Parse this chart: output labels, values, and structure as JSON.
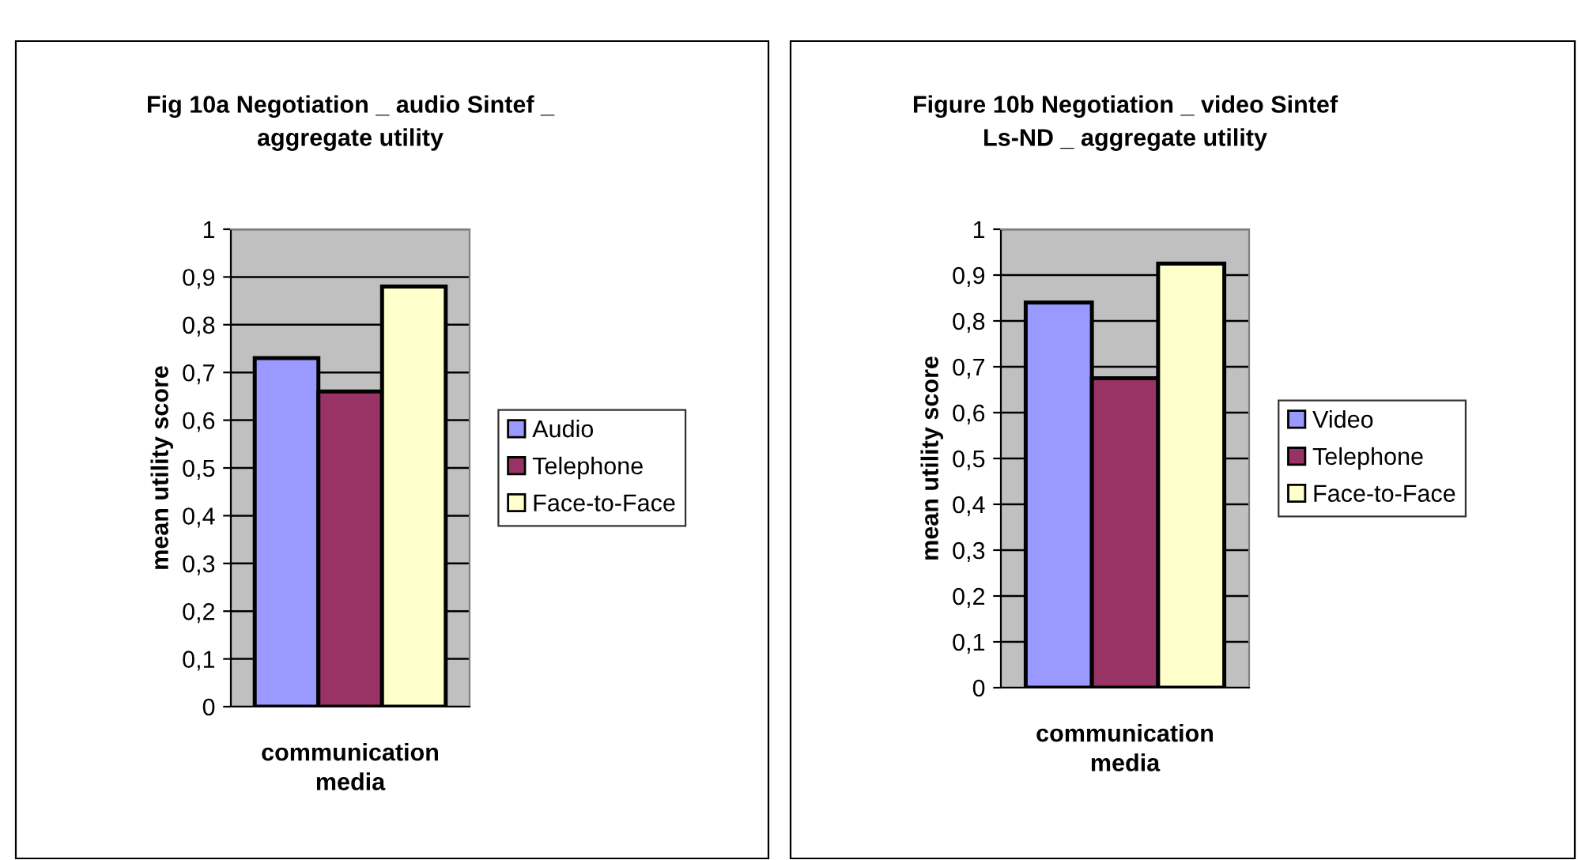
{
  "chart_data": [
    {
      "type": "bar",
      "title": "Fig 10a Negotiation _ audio Sintef _\naggregate utility",
      "xlabel": "communication\nmedia",
      "ylabel": "mean utility score",
      "categories": [
        null
      ],
      "series": [
        {
          "name": "Audio",
          "color": "#9999ff",
          "values": [
            0.73
          ]
        },
        {
          "name": "Telephone",
          "color": "#993366",
          "values": [
            0.66
          ]
        },
        {
          "name": "Face-to-Face",
          "color": "#ffffcc",
          "values": [
            0.88
          ]
        }
      ],
      "ylim": [
        0,
        1
      ],
      "yticks": [
        0,
        {
          "value": 0.1,
          "label": "0,1"
        },
        {
          "value": 0.2,
          "label": "0,2"
        },
        {
          "value": 0.3,
          "label": "0,3"
        },
        {
          "value": 0.4,
          "label": "0,4"
        },
        {
          "value": 0.5,
          "label": "0,5"
        },
        {
          "value": 0.6,
          "label": "0,6"
        },
        {
          "value": 0.7,
          "label": "0,7"
        },
        {
          "value": 0.8,
          "label": "0,8"
        },
        {
          "value": 0.9,
          "label": "0,9"
        },
        1
      ],
      "grid": "y",
      "legend": "right"
    },
    {
      "type": "bar",
      "title": "Figure 10b Negotiation _ video Sintef\nLs-ND _ aggregate utility",
      "xlabel": "communication\nmedia",
      "ylabel": "mean utility score",
      "categories": [
        null
      ],
      "series": [
        {
          "name": "Video",
          "color": "#9999ff",
          "values": [
            0.84
          ]
        },
        {
          "name": "Telephone",
          "color": "#993366",
          "values": [
            0.675
          ]
        },
        {
          "name": "Face-to-Face",
          "color": "#ffffcc",
          "values": [
            0.925
          ]
        }
      ],
      "ylim": [
        0,
        1
      ],
      "yticks": [
        0,
        {
          "value": 0.1,
          "label": "0,1"
        },
        {
          "value": 0.2,
          "label": "0,2"
        },
        {
          "value": 0.3,
          "label": "0,3"
        },
        {
          "value": 0.4,
          "label": "0,4"
        },
        {
          "value": 0.5,
          "label": "0,5"
        },
        {
          "value": 0.6,
          "label": "0,6"
        },
        {
          "value": 0.7,
          "label": "0,7"
        },
        {
          "value": 0.8,
          "label": "0,8"
        },
        {
          "value": 0.9,
          "label": "0,9"
        },
        1
      ],
      "grid": "y",
      "legend": "right"
    }
  ]
}
